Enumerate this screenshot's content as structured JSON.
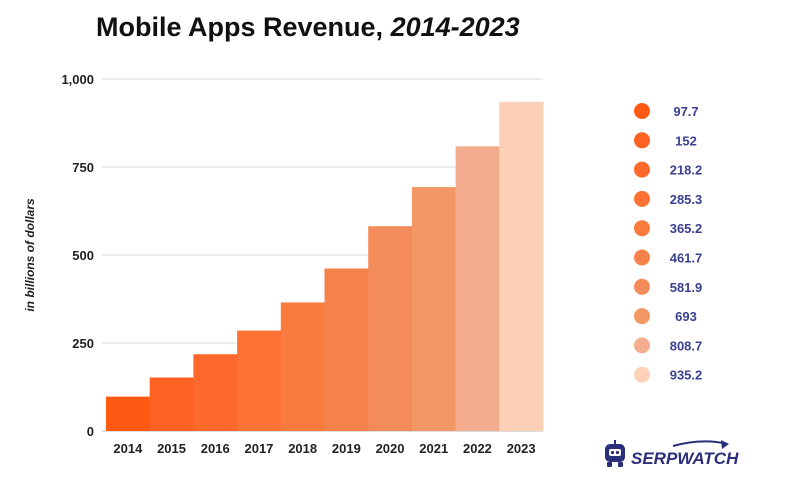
{
  "chart_data": {
    "type": "bar",
    "title": "Mobile Apps Revenue, ",
    "title_italic": "2014-2023",
    "ylabel": "in billions of dollars",
    "xlabel": "",
    "categories": [
      "2014",
      "2015",
      "2016",
      "2017",
      "2018",
      "2019",
      "2020",
      "2021",
      "2022",
      "2023"
    ],
    "values": [
      97.7,
      152,
      218.2,
      285.3,
      365.2,
      461.7,
      581.9,
      693,
      808.7,
      935.2
    ],
    "value_labels": [
      "97.7",
      "152",
      "218.2",
      "285.3",
      "365.2",
      "461.7",
      "581.9",
      "693",
      "808.7",
      "935.2"
    ],
    "ylim": [
      0,
      1000
    ],
    "yticks": [
      0,
      250,
      500,
      750,
      1000
    ],
    "ytick_labels": [
      "0",
      "250",
      "500",
      "750",
      "1,000"
    ],
    "grid": true,
    "legend_position": "right",
    "colors": [
      "#ff5a14",
      "#fd6223",
      "#fd692b",
      "#fc7335",
      "#f97b3e",
      "#f6824b",
      "#f38c5a",
      "#f39765",
      "#f3ad8e",
      "#fdd0b8"
    ]
  },
  "brand": {
    "name_part1": "SERP",
    "name_part2": "WATCH",
    "accent_color": "#2b2f7a"
  }
}
